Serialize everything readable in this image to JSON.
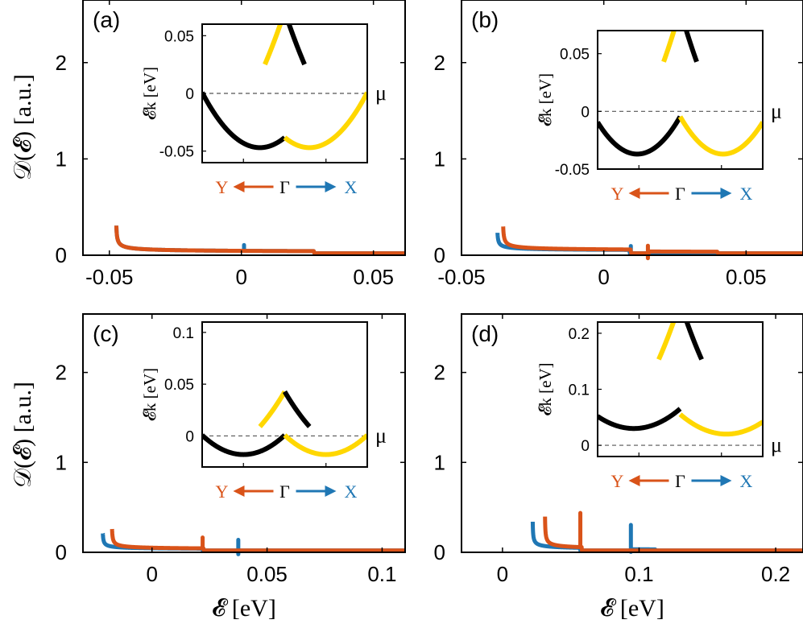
{
  "figure": {
    "main_axis_label_y": "𝒟(𝓔) [a.u.]",
    "main_axis_label_x": "𝓔 [eV]",
    "inset_y_label": "𝓔k [eV]",
    "mu_label": "μ",
    "direction_left": "Y",
    "direction_center": "Γ",
    "direction_right": "X",
    "colors": {
      "blue": "#1f77b4",
      "orange": "#d95319",
      "black": "#000000",
      "yellow": "#ffd700"
    }
  },
  "chart_data": [
    {
      "panel": "(a)",
      "type": "line",
      "xlim": [
        -0.06,
        0.062
      ],
      "ylim": [
        0,
        2.65
      ],
      "xticks": [
        -0.05,
        0,
        0.05
      ],
      "xtick_labels": [
        "-0.05",
        "0",
        "0.05"
      ],
      "yticks": [
        0,
        1,
        2
      ],
      "ytick_labels": [
        "0",
        "1",
        "2"
      ],
      "series": [
        {
          "name": "Γ→X (blue)",
          "color": "#1f77b4",
          "edge": -0.0475,
          "amp": 0.0034,
          "base": 0.03,
          "steps": [
            {
              "x": 0.0275,
              "drop": 0.05
            }
          ],
          "spikes": [
            {
              "x": 0.001,
              "h": 0.06
            }
          ]
        },
        {
          "name": "Γ→Y (orange)",
          "color": "#d95319",
          "edge": -0.0475,
          "amp": 0.0034,
          "base": 0.03,
          "steps": [
            {
              "x": 0.0275,
              "drop": 0.05
            }
          ],
          "spikes": []
        }
      ],
      "inset": {
        "ylim": [
          -0.06,
          0.06
        ],
        "yticks": [
          -0.05,
          0,
          0.05
        ],
        "ytick_labels": [
          "-0.05",
          "0",
          "0.05"
        ],
        "bands": [
          {
            "color": "#000000",
            "min_x": 0.35,
            "min_y": -0.047,
            "curv": 0.39,
            "left_x": 0.0,
            "right_x": 0.5
          },
          {
            "color": "#ffd700",
            "min_x": -0.05,
            "min_y": -0.047,
            "curv": 0.39,
            "left_x": 0.38,
            "right_x": 0.5
          },
          {
            "color": "#000000",
            "min_x": 1.05,
            "min_y": -0.047,
            "curv": 0.39,
            "left_x": 0.5,
            "right_x": 0.62
          },
          {
            "color": "#ffd700",
            "min_x": 0.65,
            "min_y": -0.047,
            "curv": 0.39,
            "left_x": 0.5,
            "right_x": 1.0
          }
        ]
      }
    },
    {
      "panel": "(b)",
      "type": "line",
      "xlim": [
        -0.05,
        0.07
      ],
      "ylim": [
        0,
        2.65
      ],
      "xticks": [
        -0.05,
        0,
        0.05
      ],
      "xtick_labels": [
        "-0.05",
        "0",
        "0.05"
      ],
      "yticks": [
        0,
        1,
        2
      ],
      "ytick_labels": [
        "0",
        "1",
        "2"
      ],
      "series": [
        {
          "name": "Γ→X (blue)",
          "color": "#1f77b4",
          "edge": -0.0375,
          "amp": 0.0023,
          "base": 0.045,
          "steps": [
            {
              "x": 0.009,
              "drop": 0.04
            },
            {
              "x": 0.039,
              "drop": 0.1
            }
          ],
          "spikes": [
            {
              "x": 0.0095,
              "h": 0.08
            }
          ]
        },
        {
          "name": "Γ→Y (orange)",
          "color": "#d95319",
          "edge": -0.0355,
          "amp": 0.0031,
          "base": 0.045,
          "steps": [
            {
              "x": 0.0095,
              "drop": 0.09
            },
            {
              "x": 0.016,
              "drop": -0.07
            },
            {
              "x": 0.04,
              "drop": 0.06
            }
          ],
          "spikes": [
            {
              "x": 0.0155,
              "h": 0.13
            }
          ]
        }
      ],
      "inset": {
        "ylim": [
          -0.05,
          0.07
        ],
        "yticks": [
          -0.05,
          0,
          0.05
        ],
        "ytick_labels": [
          "-0.05",
          "0",
          "0.05"
        ],
        "bands": [
          {
            "color": "#000000",
            "min_x": 0.24,
            "min_y": -0.037,
            "curv": 0.48,
            "left_x": 0.0,
            "right_x": 0.5
          },
          {
            "color": "#ffd700",
            "min_x": 0.0,
            "min_y": -0.037,
            "curv": 0.5,
            "left_x": 0.4,
            "right_x": 0.5
          },
          {
            "color": "#000000",
            "min_x": 1.0,
            "min_y": -0.037,
            "curv": 0.5,
            "left_x": 0.5,
            "right_x": 0.6
          },
          {
            "color": "#ffd700",
            "min_x": 0.76,
            "min_y": -0.037,
            "curv": 0.48,
            "left_x": 0.5,
            "right_x": 1.0
          }
        ]
      }
    },
    {
      "panel": "(c)",
      "type": "line",
      "xlim": [
        -0.03,
        0.11
      ],
      "ylim": [
        0,
        2.65
      ],
      "xticks": [
        0,
        0.05,
        0.1
      ],
      "xtick_labels": [
        "0",
        "0.05",
        "0.1"
      ],
      "yticks": [
        0,
        1,
        2
      ],
      "ytick_labels": [
        "0",
        "1",
        "2"
      ],
      "series": [
        {
          "name": "Γ→X (blue)",
          "color": "#1f77b4",
          "edge": -0.0215,
          "amp": 0.0022,
          "base": 0.03,
          "steps": [
            {
              "x": 0.022,
              "drop": 0.06
            },
            {
              "x": 0.038,
              "drop": -0.04
            },
            {
              "x": 0.061,
              "drop": 0.05
            }
          ],
          "spikes": [
            {
              "x": 0.0375,
              "h": 0.16
            }
          ]
        },
        {
          "name": "Γ→Y (orange)",
          "color": "#d95319",
          "edge": -0.0175,
          "amp": 0.0028,
          "base": 0.03,
          "steps": [
            {
              "x": 0.0225,
              "drop": 0.07
            },
            {
              "x": 0.038,
              "drop": -0.03
            },
            {
              "x": 0.061,
              "drop": 0.05
            }
          ],
          "spikes": [
            {
              "x": 0.022,
              "h": 0.12
            }
          ]
        }
      ],
      "inset": {
        "ylim": [
          -0.03,
          0.11
        ],
        "yticks": [
          0,
          0.05,
          0.1
        ],
        "ytick_labels": [
          "0",
          "0.05",
          "0.1"
        ],
        "bands": [
          {
            "color": "#000000",
            "min_x": 0.25,
            "min_y": -0.018,
            "curv": 0.3,
            "left_x": 0.0,
            "right_x": 0.5
          },
          {
            "color": "#ffd700",
            "min_x": 0.05,
            "min_y": -0.018,
            "curv": 0.3,
            "left_x": 0.35,
            "right_x": 0.5
          },
          {
            "color": "#000000",
            "min_x": 0.95,
            "min_y": -0.018,
            "curv": 0.3,
            "left_x": 0.5,
            "right_x": 0.65
          },
          {
            "color": "#ffd700",
            "min_x": 0.75,
            "min_y": -0.018,
            "curv": 0.3,
            "left_x": 0.5,
            "right_x": 1.0
          }
        ]
      }
    },
    {
      "panel": "(d)",
      "type": "line",
      "xlim": [
        -0.03,
        0.22
      ],
      "ylim": [
        0,
        2.65
      ],
      "xticks": [
        0,
        0.1,
        0.2
      ],
      "xtick_labels": [
        "0",
        "0.1",
        "0.2"
      ],
      "yticks": [
        0,
        1,
        2
      ],
      "ytick_labels": [
        "0",
        "1",
        "2"
      ],
      "series": [
        {
          "name": "Γ→X (blue)",
          "color": "#1f77b4",
          "edge": 0.022,
          "amp": 0.0038,
          "base": 0.03,
          "steps": [
            {
              "x": 0.057,
              "drop": 0.04
            },
            {
              "x": 0.095,
              "drop": -0.03
            },
            {
              "x": 0.112,
              "drop": 0.05
            }
          ],
          "spikes": [
            {
              "x": 0.094,
              "h": 0.3
            }
          ]
        },
        {
          "name": "Γ→Y (orange)",
          "color": "#d95319",
          "edge": 0.031,
          "amp": 0.0045,
          "base": 0.03,
          "steps": [
            {
              "x": 0.058,
              "drop": 0.14
            },
            {
              "x": 0.095,
              "drop": 0.02
            },
            {
              "x": 0.112,
              "drop": 0.03
            }
          ],
          "spikes": [
            {
              "x": 0.057,
              "h": 0.38
            }
          ]
        }
      ],
      "inset": {
        "ylim": [
          -0.02,
          0.22
        ],
        "yticks": [
          0,
          0.1,
          0.2
        ],
        "ytick_labels": [
          "0",
          "0.1",
          "0.2"
        ],
        "bands": [
          {
            "color": "#000000",
            "min_x": 0.22,
            "min_y": 0.03,
            "curv": 0.45,
            "left_x": 0.0,
            "right_x": 0.5
          },
          {
            "color": "#ffd700",
            "min_x": 0.0,
            "min_y": 0.03,
            "curv": 0.9,
            "left_x": 0.37,
            "right_x": 0.5
          },
          {
            "color": "#000000",
            "min_x": 1.0,
            "min_y": 0.03,
            "curv": 0.9,
            "left_x": 0.5,
            "right_x": 0.63
          },
          {
            "color": "#ffd700",
            "min_x": 0.78,
            "min_y": 0.02,
            "curv": 0.45,
            "left_x": 0.5,
            "right_x": 1.0
          }
        ]
      }
    }
  ]
}
